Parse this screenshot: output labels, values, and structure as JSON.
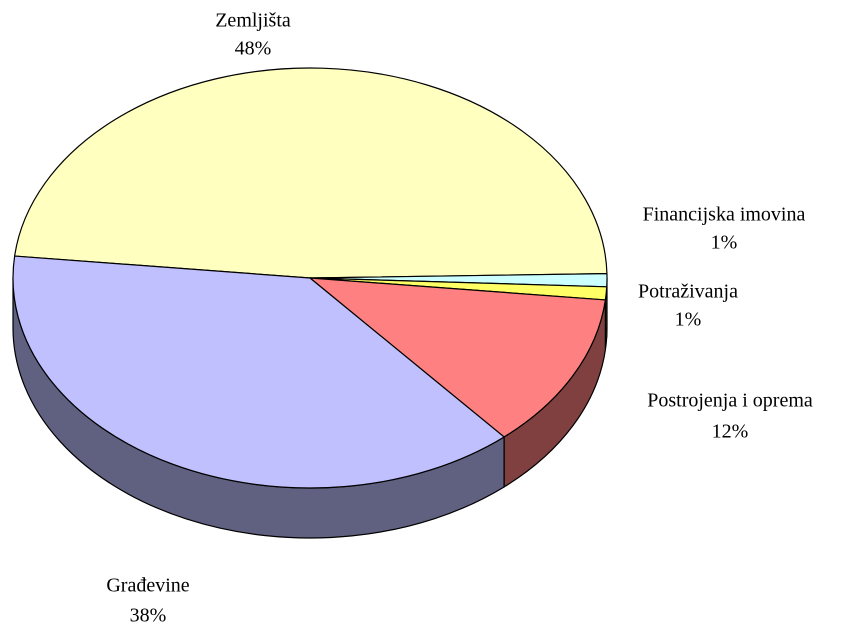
{
  "chart_data": {
    "type": "pie",
    "categories": [
      "Zemljišta",
      "Financijska imovina",
      "Potraživanja",
      "Postrojenja i oprema",
      "Građevine"
    ],
    "values": [
      48,
      1,
      1,
      12,
      38
    ],
    "value_labels": [
      "48%",
      "1%",
      "1%",
      "12%",
      "38%"
    ],
    "colors": [
      "#ffffc0",
      "#ccffff",
      "#ffff66",
      "#ff8080",
      "#c0c0ff"
    ]
  }
}
